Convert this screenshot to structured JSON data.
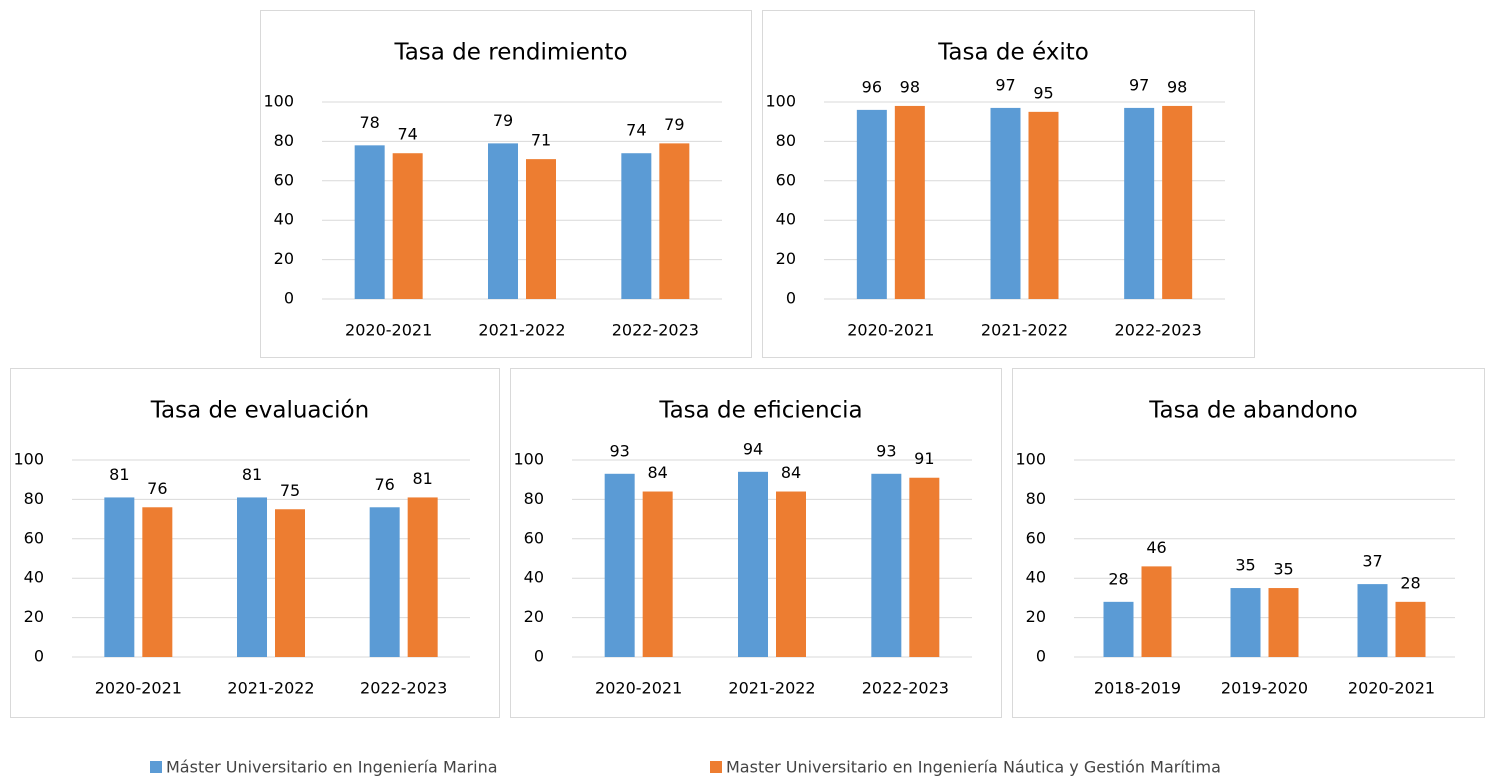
{
  "chart_data": [
    {
      "type": "bar",
      "title": "Tasa de rendimiento",
      "categories": [
        "2020-2021",
        "2021-2022",
        "2022-2023"
      ],
      "series": [
        {
          "values": [
            78,
            79,
            74
          ]
        },
        {
          "values": [
            74,
            71,
            79
          ]
        }
      ],
      "ylim": [
        0,
        100
      ],
      "yticks": [
        0,
        20,
        40,
        60,
        80,
        100
      ],
      "grid": true
    },
    {
      "type": "bar",
      "title": "Tasa de éxito",
      "categories": [
        "2020-2021",
        "2021-2022",
        "2022-2023"
      ],
      "series": [
        {
          "values": [
            96,
            97,
            97
          ]
        },
        {
          "values": [
            98,
            95,
            98
          ]
        }
      ],
      "ylim": [
        0,
        100
      ],
      "yticks": [
        0,
        20,
        40,
        60,
        80,
        100
      ],
      "grid": true
    },
    {
      "type": "bar",
      "title": "Tasa de evaluación",
      "categories": [
        "2020-2021",
        "2021-2022",
        "2022-2023"
      ],
      "series": [
        {
          "values": [
            81,
            81,
            76
          ]
        },
        {
          "values": [
            76,
            75,
            81
          ]
        }
      ],
      "ylim": [
        0,
        100
      ],
      "yticks": [
        0,
        20,
        40,
        60,
        80,
        100
      ],
      "grid": true
    },
    {
      "type": "bar",
      "title": "Tasa de eficiencia",
      "categories": [
        "2020-2021",
        "2021-2022",
        "2022-2023"
      ],
      "series": [
        {
          "values": [
            93,
            94,
            93
          ]
        },
        {
          "values": [
            84,
            84,
            91
          ]
        }
      ],
      "ylim": [
        0,
        100
      ],
      "yticks": [
        0,
        20,
        40,
        60,
        80,
        100
      ],
      "grid": true
    },
    {
      "type": "bar",
      "title": "Tasa de abandono",
      "categories": [
        "2018-2019",
        "2019-2020",
        "2020-2021"
      ],
      "series": [
        {
          "values": [
            28,
            35,
            37
          ]
        },
        {
          "values": [
            46,
            35,
            28
          ]
        }
      ],
      "ylim": [
        0,
        100
      ],
      "yticks": [
        0,
        20,
        40,
        60,
        80,
        100
      ],
      "grid": true
    }
  ],
  "legend": [
    {
      "name": "Máster Universitario en Ingeniería Marina",
      "color": "#5b9bd5"
    },
    {
      "name": "Master Universitario en Ingeniería Náutica y Gestión Marítima",
      "color": "#ed7d31"
    }
  ]
}
